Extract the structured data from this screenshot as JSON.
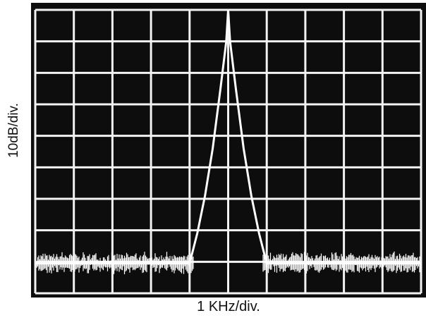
{
  "chart_data": {
    "type": "line",
    "title": "",
    "xlabel": "1 KHz/div.",
    "ylabel": "10dB/div.",
    "x_divisions": 10,
    "y_divisions": 9,
    "grid": true,
    "background": "#0d0d0d",
    "trace_color": "#ffffff",
    "grid_color": "#f2f2f2",
    "series": [
      {
        "x": [
          0.0,
          0.5,
          1.0,
          1.5,
          2.0,
          2.5,
          3.0,
          3.5,
          4.0,
          4.2,
          4.4,
          4.6,
          4.8,
          4.95,
          5.0,
          5.05,
          5.2,
          5.4,
          5.6,
          5.8,
          6.0,
          6.5,
          7.0,
          7.5,
          8.0,
          8.5,
          9.0,
          9.5,
          10.0
        ],
        "y": [
          -80.5,
          -80.5,
          -80.5,
          -80.5,
          -80.5,
          -80.5,
          -80.5,
          -80.5,
          -80.5,
          -71,
          -59,
          -44,
          -25,
          -10,
          0,
          -10,
          -25,
          -44,
          -59,
          -71,
          -80.5,
          -80.5,
          -80.5,
          -80.5,
          -80.5,
          -80.5,
          -80.5,
          -80.5,
          -80.5
        ]
      }
    ],
    "xlim": [
      0,
      10
    ],
    "ylim": [
      -90,
      0
    ]
  }
}
